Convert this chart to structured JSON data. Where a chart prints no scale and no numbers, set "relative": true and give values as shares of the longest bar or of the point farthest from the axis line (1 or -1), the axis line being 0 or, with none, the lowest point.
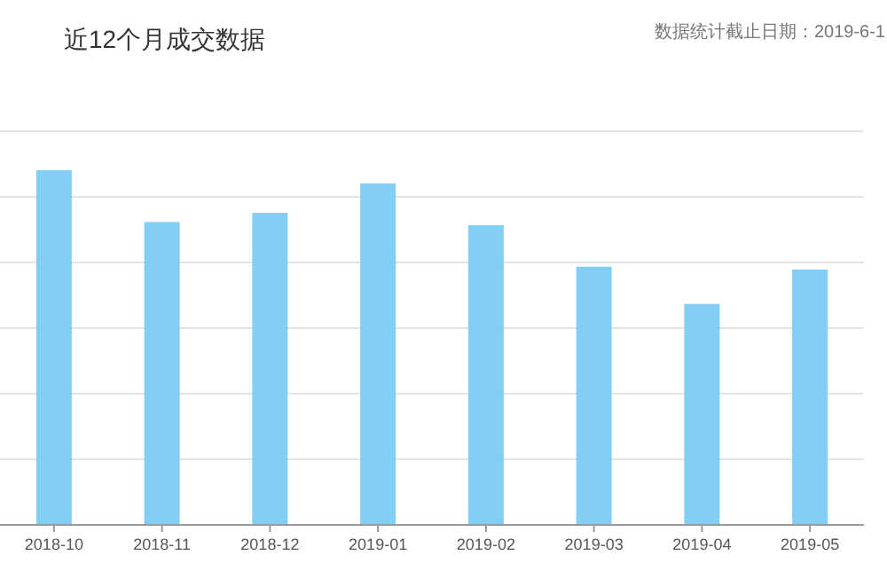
{
  "chart_data": {
    "type": "bar",
    "title": "近12个月成交数据",
    "subtitle": "数据统计截止日期：2019-6-1",
    "categories": [
      "2018-10",
      "2018-11",
      "2018-12",
      "2019-01",
      "2019-02",
      "2019-03",
      "2019-04",
      "2019-05"
    ],
    "values": [
      1,
      0.854,
      0.88,
      0.963,
      0.845,
      0.728,
      0.623,
      0.72
    ],
    "color": "#82cff3",
    "relative": true,
    "grid": "y"
  }
}
